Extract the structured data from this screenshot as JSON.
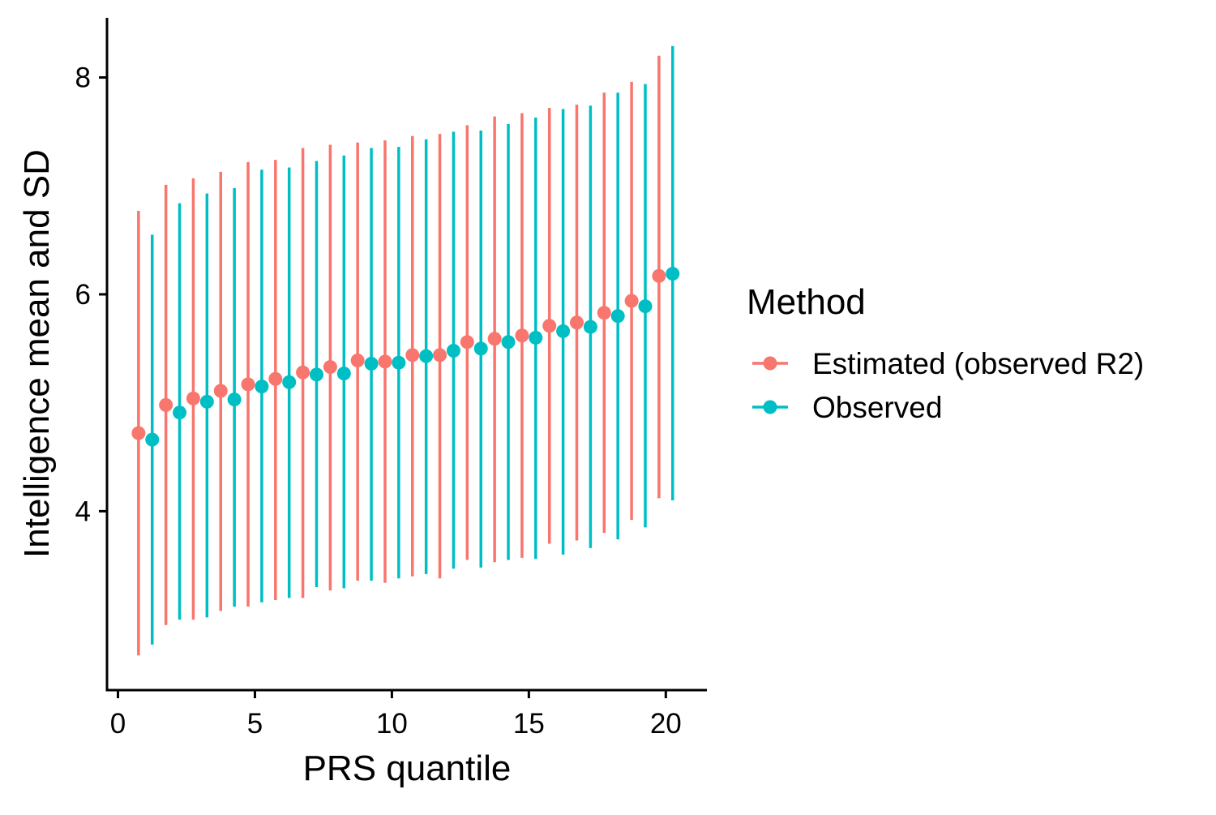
{
  "chart_data": {
    "type": "scatter",
    "title": "",
    "xlabel": "PRS quantile",
    "ylabel": "Intelligence mean and SD",
    "xlim": [
      -0.4,
      21.5
    ],
    "ylim": [
      2.35,
      8.55
    ],
    "x_ticks": [
      0,
      5,
      10,
      15,
      20
    ],
    "y_ticks": [
      4,
      6,
      8
    ],
    "legend_title": "Method",
    "legend_position": "right",
    "grid": false,
    "series": [
      {
        "name": "Estimated (observed R2)",
        "color": "#F8766D",
        "x": [
          1,
          2,
          3,
          4,
          5,
          6,
          7,
          8,
          9,
          10,
          11,
          12,
          13,
          14,
          15,
          16,
          17,
          18,
          19,
          20
        ],
        "mean": [
          4.72,
          4.98,
          5.04,
          5.11,
          5.17,
          5.22,
          5.28,
          5.33,
          5.39,
          5.38,
          5.44,
          5.44,
          5.56,
          5.59,
          5.62,
          5.71,
          5.74,
          5.83,
          5.94,
          6.17
        ],
        "lower": [
          2.67,
          2.95,
          3.0,
          3.08,
          3.12,
          3.18,
          3.2,
          3.27,
          3.36,
          3.34,
          3.4,
          3.38,
          3.55,
          3.53,
          3.57,
          3.7,
          3.73,
          3.8,
          3.92,
          4.12
        ],
        "upper": [
          6.77,
          7.01,
          7.07,
          7.13,
          7.22,
          7.24,
          7.35,
          7.38,
          7.4,
          7.42,
          7.46,
          7.48,
          7.56,
          7.64,
          7.67,
          7.72,
          7.75,
          7.86,
          7.96,
          8.2
        ]
      },
      {
        "name": "Observed",
        "color": "#00BFC4",
        "x": [
          1,
          2,
          3,
          4,
          5,
          6,
          7,
          8,
          9,
          10,
          11,
          12,
          13,
          14,
          15,
          16,
          17,
          18,
          19,
          20
        ],
        "mean": [
          4.66,
          4.91,
          5.01,
          5.03,
          5.15,
          5.19,
          5.26,
          5.27,
          5.36,
          5.37,
          5.43,
          5.48,
          5.5,
          5.56,
          5.6,
          5.66,
          5.7,
          5.8,
          5.89,
          6.19
        ],
        "lower": [
          2.77,
          3.0,
          3.02,
          3.12,
          3.16,
          3.2,
          3.3,
          3.29,
          3.36,
          3.38,
          3.42,
          3.47,
          3.48,
          3.55,
          3.56,
          3.6,
          3.66,
          3.74,
          3.85,
          4.1
        ],
        "upper": [
          6.55,
          6.84,
          6.93,
          6.98,
          7.15,
          7.17,
          7.23,
          7.28,
          7.35,
          7.36,
          7.43,
          7.5,
          7.51,
          7.57,
          7.63,
          7.71,
          7.74,
          7.86,
          7.94,
          8.29
        ]
      }
    ]
  }
}
